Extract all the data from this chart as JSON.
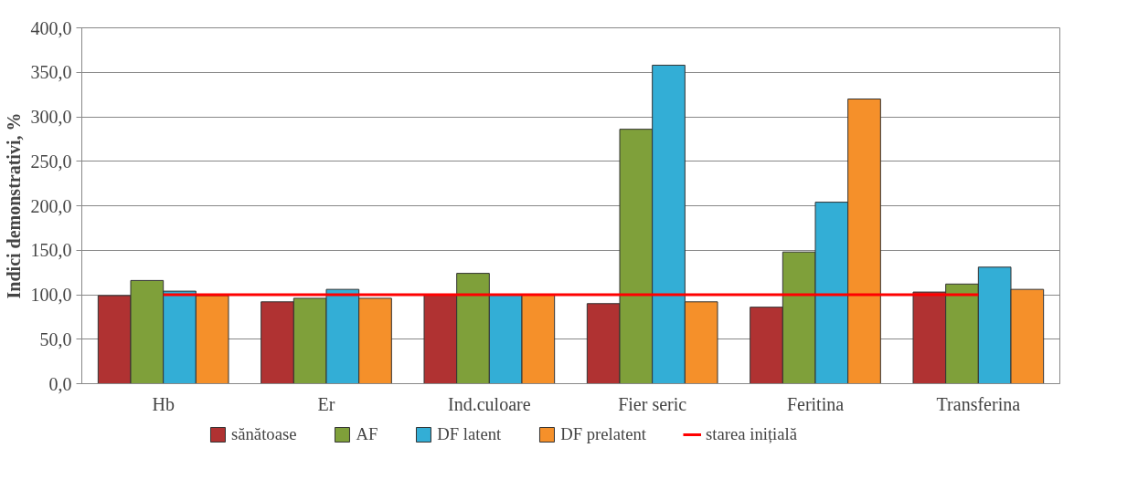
{
  "chart_data": {
    "type": "bar",
    "ylabel": "Indici demonstrativi, %",
    "categories": [
      "Hb",
      "Er",
      "Ind.culoare",
      "Fier seric",
      "Feritina",
      "Transferina"
    ],
    "series": [
      {
        "name": "sănătoase",
        "color": "#b03232",
        "values": [
          99,
          92,
          100,
          90,
          86,
          103
        ]
      },
      {
        "name": "AF",
        "color": "#7fa03a",
        "values": [
          116,
          96,
          124,
          286,
          148,
          112
        ]
      },
      {
        "name": "DF latent",
        "color": "#33aed6",
        "values": [
          104,
          106,
          100,
          358,
          204,
          131
        ]
      },
      {
        "name": "DF prelatent",
        "color": "#f5902a",
        "values": [
          99,
          96,
          100,
          92,
          320,
          106
        ]
      },
      {
        "name": "starea inițială",
        "type": "line",
        "color": "#ff0000",
        "values": [
          100,
          100,
          100,
          100,
          100,
          100
        ]
      }
    ],
    "ylim": [
      0,
      400
    ],
    "yticks": [
      {
        "value": 0,
        "label": "0,0"
      },
      {
        "value": 50,
        "label": "50,0"
      },
      {
        "value": 100,
        "label": "100,0"
      },
      {
        "value": 150,
        "label": "150,0"
      },
      {
        "value": 200,
        "label": "200,0"
      },
      {
        "value": 250,
        "label": "250,0"
      },
      {
        "value": 300,
        "label": "300,0"
      },
      {
        "value": 350,
        "label": "350,0"
      },
      {
        "value": 400,
        "label": "400,0"
      }
    ],
    "grid": "y",
    "legend": "bottom"
  }
}
